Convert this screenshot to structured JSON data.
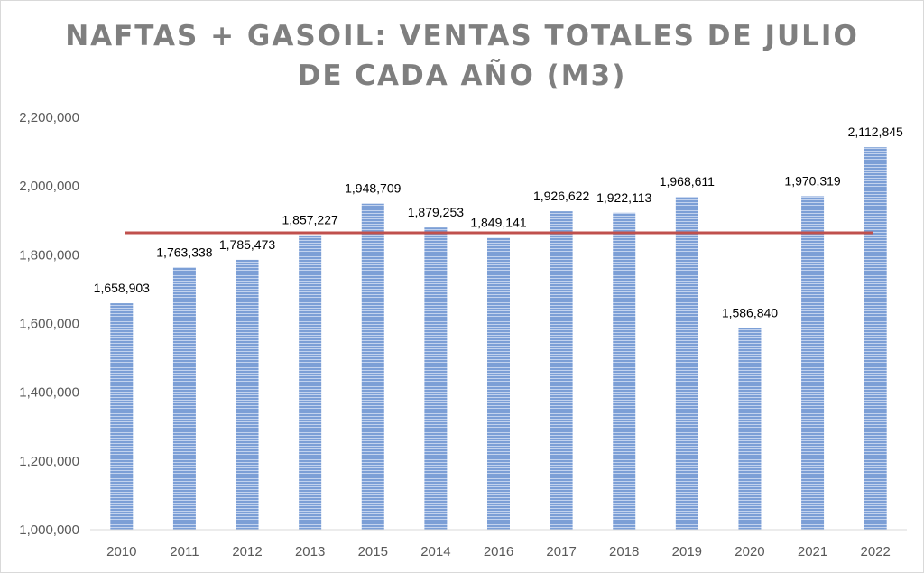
{
  "chart_data": {
    "type": "bar",
    "title_lines": [
      "NAFTAS + GASOIL: VENTAS TOTALES DE JULIO",
      "DE CADA AÑO (M3)"
    ],
    "categories": [
      "2010",
      "2011",
      "2012",
      "2013",
      "2015",
      "2014",
      "2016",
      "2017",
      "2018",
      "2019",
      "2020",
      "2021",
      "2022"
    ],
    "values": [
      1658903,
      1763338,
      1785473,
      1857227,
      1948709,
      1879253,
      1849141,
      1926622,
      1922113,
      1968611,
      1586840,
      1970319,
      2112845
    ],
    "data_labels": [
      "1,658,903",
      "1,763,338",
      "1,785,473",
      "1,857,227",
      "1,948,709",
      "1,879,253",
      "1,849,141",
      "1,926,622",
      "1,922,113",
      "1,968,611",
      "1,586,840",
      "1,970,319",
      "2,112,845"
    ],
    "y_ticks": [
      1000000,
      1200000,
      1400000,
      1600000,
      1800000,
      2000000,
      2200000
    ],
    "y_tick_labels": [
      "1,000,000",
      "1,200,000",
      "1,400,000",
      "1,600,000",
      "1,800,000",
      "2,000,000",
      "2,200,000"
    ],
    "ylim": [
      1000000,
      2200000
    ],
    "reference_line": {
      "value": 1864000,
      "color": "#c0504d"
    },
    "bar_color": "#6f95cf",
    "xlabel": "",
    "ylabel": "",
    "legend": "none",
    "grid": false
  }
}
